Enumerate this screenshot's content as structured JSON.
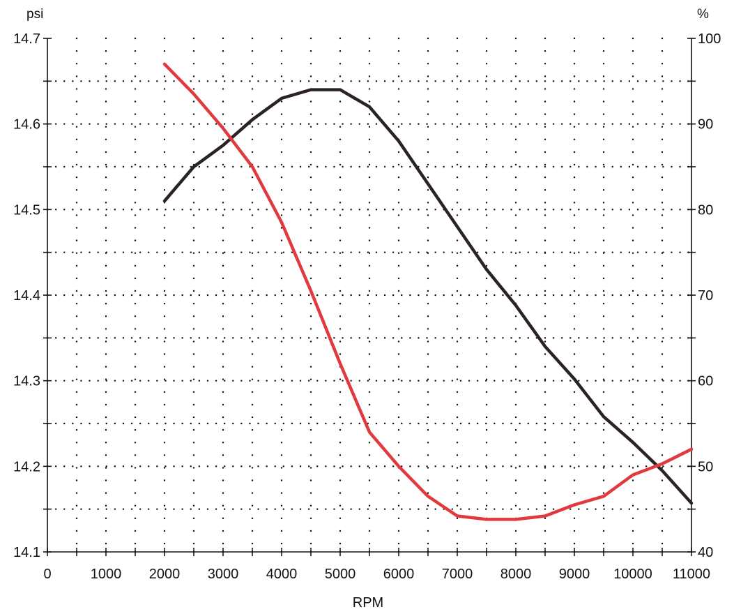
{
  "chart_data": {
    "type": "line",
    "title": "",
    "xlabel": "RPM",
    "ylabel_left": "psi",
    "ylabel_right": "%",
    "xlim": [
      0,
      11000
    ],
    "ylim_left": [
      14.1,
      14.7
    ],
    "ylim_right": [
      40,
      100
    ],
    "x_ticks": [
      "0",
      "1000",
      "2000",
      "3000",
      "4000",
      "5000",
      "6000",
      "7000",
      "8000",
      "9000",
      "10000",
      "11000"
    ],
    "y_left_ticks": [
      "14.1",
      "14.2",
      "14.3",
      "14.4",
      "14.5",
      "14.6",
      "14.7"
    ],
    "y_right_ticks": [
      "40",
      "50",
      "60",
      "70",
      "80",
      "90",
      "100"
    ],
    "grid": "dotted",
    "series": [
      {
        "axis": "left",
        "color": "#2a2226",
        "x": [
          2000,
          2500,
          3000,
          3500,
          4000,
          4500,
          5000,
          5500,
          6000,
          6500,
          7000,
          7500,
          8000,
          8500,
          9000,
          9500,
          10000,
          10500,
          11000
        ],
        "values": [
          14.51,
          14.55,
          14.575,
          14.605,
          14.63,
          14.64,
          14.64,
          14.62,
          14.58,
          14.53,
          14.48,
          14.43,
          14.388,
          14.34,
          14.302,
          14.258,
          14.228,
          14.195,
          14.157
        ]
      },
      {
        "axis": "right",
        "color": "#e03a3e",
        "x": [
          2000,
          2500,
          3000,
          3500,
          4000,
          4500,
          5000,
          5500,
          6000,
          6500,
          7000,
          7500,
          8000,
          8500,
          9000,
          9500,
          10000,
          10500,
          11000
        ],
        "values": [
          97,
          93.5,
          89.5,
          85,
          78.5,
          70.5,
          62,
          54,
          50,
          46.5,
          44.2,
          43.8,
          43.8,
          44.2,
          45.5,
          46.5,
          49,
          50.3,
          52
        ]
      }
    ]
  }
}
